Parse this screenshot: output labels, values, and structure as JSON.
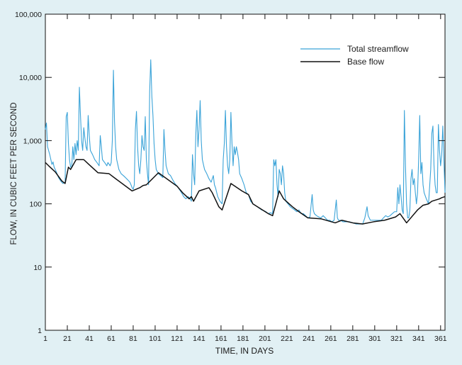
{
  "chart_data": {
    "type": "line",
    "title": "",
    "xlabel": "TIME, IN DAYS",
    "ylabel": "FLOW, IN CUBIC FEET PER SECOND",
    "x_scale": "linear",
    "y_scale": "log",
    "xlim": [
      1,
      365
    ],
    "ylim": [
      1,
      100000
    ],
    "x_ticks": [
      1,
      21,
      41,
      61,
      81,
      101,
      121,
      141,
      161,
      181,
      201,
      221,
      241,
      261,
      281,
      301,
      321,
      341,
      361
    ],
    "y_ticks": [
      {
        "value": 1,
        "label": "1"
      },
      {
        "value": 10,
        "label": "10"
      },
      {
        "value": 100,
        "label": "100"
      },
      {
        "value": 1000,
        "label": "1,000"
      },
      {
        "value": 10000,
        "label": "10,000"
      },
      {
        "value": 100000,
        "label": "100,000"
      }
    ],
    "grid": false,
    "legend_position": "top-right",
    "colors": {
      "background": "#e1f0f4",
      "plot_background": "#ffffff",
      "total_streamflow": "#3aa3d8",
      "base_flow": "#111111"
    },
    "series": [
      {
        "name": "Total streamflow",
        "color": "#3aa3d8",
        "points": [
          [
            1,
            1500
          ],
          [
            2,
            1900
          ],
          [
            3,
            800
          ],
          [
            5,
            600
          ],
          [
            7,
            420
          ],
          [
            8,
            460
          ],
          [
            9,
            380
          ],
          [
            11,
            320
          ],
          [
            13,
            260
          ],
          [
            15,
            230
          ],
          [
            17,
            210
          ],
          [
            19,
            220
          ],
          [
            20,
            2400
          ],
          [
            21,
            2800
          ],
          [
            22,
            900
          ],
          [
            23,
            500
          ],
          [
            24,
            380
          ],
          [
            25,
            380
          ],
          [
            26,
            800
          ],
          [
            27,
            500
          ],
          [
            28,
            900
          ],
          [
            29,
            600
          ],
          [
            30,
            1000
          ],
          [
            31,
            700
          ],
          [
            32,
            7000
          ],
          [
            33,
            2500
          ],
          [
            34,
            1000
          ],
          [
            35,
            700
          ],
          [
            36,
            1600
          ],
          [
            37,
            1100
          ],
          [
            38,
            800
          ],
          [
            39,
            700
          ],
          [
            40,
            2500
          ],
          [
            41,
            1200
          ],
          [
            42,
            700
          ],
          [
            44,
            600
          ],
          [
            46,
            500
          ],
          [
            48,
            450
          ],
          [
            50,
            400
          ],
          [
            51,
            1200
          ],
          [
            52,
            800
          ],
          [
            53,
            500
          ],
          [
            55,
            450
          ],
          [
            57,
            400
          ],
          [
            58,
            450
          ],
          [
            60,
            400
          ],
          [
            61,
            450
          ],
          [
            62,
            1000
          ],
          [
            63,
            13000
          ],
          [
            64,
            2000
          ],
          [
            65,
            800
          ],
          [
            66,
            500
          ],
          [
            68,
            350
          ],
          [
            70,
            300
          ],
          [
            72,
            280
          ],
          [
            74,
            260
          ],
          [
            76,
            240
          ],
          [
            78,
            220
          ],
          [
            79,
            200
          ],
          [
            80,
            180
          ],
          [
            81,
            170
          ],
          [
            82,
            200
          ],
          [
            83,
            1500
          ],
          [
            84,
            2900
          ],
          [
            85,
            800
          ],
          [
            86,
            400
          ],
          [
            87,
            300
          ],
          [
            88,
            500
          ],
          [
            89,
            1200
          ],
          [
            90,
            800
          ],
          [
            91,
            700
          ],
          [
            92,
            2400
          ],
          [
            93,
            500
          ],
          [
            94,
            300
          ],
          [
            95,
            200
          ],
          [
            96,
            6000
          ],
          [
            97,
            19000
          ],
          [
            98,
            5000
          ],
          [
            99,
            2500
          ],
          [
            100,
            900
          ],
          [
            101,
            500
          ],
          [
            102,
            350
          ],
          [
            104,
            300
          ],
          [
            106,
            280
          ],
          [
            108,
            260
          ],
          [
            109,
            1500
          ],
          [
            110,
            700
          ],
          [
            111,
            400
          ],
          [
            113,
            300
          ],
          [
            115,
            280
          ],
          [
            117,
            240
          ],
          [
            119,
            210
          ],
          [
            121,
            190
          ],
          [
            123,
            170
          ],
          [
            125,
            150
          ],
          [
            127,
            130
          ],
          [
            129,
            120
          ],
          [
            131,
            130
          ],
          [
            133,
            120
          ],
          [
            134,
            110
          ],
          [
            135,
            600
          ],
          [
            136,
            300
          ],
          [
            137,
            200
          ],
          [
            138,
            1200
          ],
          [
            139,
            3000
          ],
          [
            140,
            800
          ],
          [
            141,
            1500
          ],
          [
            142,
            4300
          ],
          [
            143,
            1000
          ],
          [
            144,
            500
          ],
          [
            146,
            350
          ],
          [
            148,
            300
          ],
          [
            150,
            250
          ],
          [
            152,
            220
          ],
          [
            154,
            280
          ],
          [
            155,
            200
          ],
          [
            156,
            180
          ],
          [
            158,
            130
          ],
          [
            160,
            110
          ],
          [
            162,
            100
          ],
          [
            163,
            500
          ],
          [
            164,
            900
          ],
          [
            165,
            3000
          ],
          [
            166,
            800
          ],
          [
            167,
            400
          ],
          [
            168,
            300
          ],
          [
            169,
            500
          ],
          [
            170,
            2800
          ],
          [
            171,
            900
          ],
          [
            172,
            400
          ],
          [
            173,
            800
          ],
          [
            174,
            600
          ],
          [
            175,
            800
          ],
          [
            176,
            650
          ],
          [
            177,
            500
          ],
          [
            178,
            300
          ],
          [
            180,
            250
          ],
          [
            182,
            200
          ],
          [
            184,
            150
          ],
          [
            186,
            140
          ],
          [
            188,
            110
          ],
          [
            190,
            100
          ],
          [
            192,
            95
          ],
          [
            194,
            90
          ],
          [
            196,
            85
          ],
          [
            198,
            80
          ],
          [
            200,
            78
          ],
          [
            202,
            75
          ],
          [
            204,
            70
          ],
          [
            206,
            72
          ],
          [
            208,
            70
          ],
          [
            209,
            500
          ],
          [
            210,
            400
          ],
          [
            211,
            500
          ],
          [
            212,
            200
          ],
          [
            213,
            130
          ],
          [
            214,
            350
          ],
          [
            215,
            300
          ],
          [
            216,
            200
          ],
          [
            217,
            400
          ],
          [
            218,
            300
          ],
          [
            219,
            150
          ],
          [
            220,
            110
          ],
          [
            222,
            100
          ],
          [
            224,
            90
          ],
          [
            226,
            85
          ],
          [
            228,
            80
          ],
          [
            230,
            75
          ],
          [
            232,
            80
          ],
          [
            234,
            70
          ],
          [
            236,
            70
          ],
          [
            238,
            65
          ],
          [
            240,
            60
          ],
          [
            242,
            62
          ],
          [
            244,
            140
          ],
          [
            245,
            80
          ],
          [
            246,
            70
          ],
          [
            248,
            65
          ],
          [
            250,
            62
          ],
          [
            252,
            60
          ],
          [
            254,
            65
          ],
          [
            256,
            60
          ],
          [
            258,
            55
          ],
          [
            260,
            55
          ],
          [
            262,
            52
          ],
          [
            264,
            55
          ],
          [
            266,
            115
          ],
          [
            267,
            60
          ],
          [
            268,
            55
          ],
          [
            270,
            55
          ],
          [
            272,
            52
          ],
          [
            275,
            52
          ],
          [
            278,
            52
          ],
          [
            281,
            50
          ],
          [
            284,
            48
          ],
          [
            287,
            48
          ],
          [
            290,
            48
          ],
          [
            292,
            60
          ],
          [
            294,
            90
          ],
          [
            295,
            65
          ],
          [
            297,
            55
          ],
          [
            299,
            55
          ],
          [
            301,
            55
          ],
          [
            303,
            55
          ],
          [
            305,
            55
          ],
          [
            307,
            55
          ],
          [
            309,
            60
          ],
          [
            311,
            65
          ],
          [
            313,
            62
          ],
          [
            315,
            65
          ],
          [
            317,
            70
          ],
          [
            319,
            75
          ],
          [
            321,
            75
          ],
          [
            322,
            180
          ],
          [
            323,
            100
          ],
          [
            324,
            200
          ],
          [
            325,
            130
          ],
          [
            326,
            80
          ],
          [
            327,
            70
          ],
          [
            328,
            3000
          ],
          [
            329,
            400
          ],
          [
            330,
            100
          ],
          [
            331,
            60
          ],
          [
            332,
            60
          ],
          [
            333,
            80
          ],
          [
            334,
            250
          ],
          [
            335,
            350
          ],
          [
            336,
            200
          ],
          [
            337,
            250
          ],
          [
            338,
            150
          ],
          [
            339,
            100
          ],
          [
            340,
            150
          ],
          [
            341,
            500
          ],
          [
            342,
            2500
          ],
          [
            343,
            300
          ],
          [
            344,
            450
          ],
          [
            345,
            200
          ],
          [
            346,
            150
          ],
          [
            348,
            120
          ],
          [
            350,
            100
          ],
          [
            352,
            350
          ],
          [
            353,
            1300
          ],
          [
            354,
            1700
          ],
          [
            355,
            400
          ],
          [
            356,
            200
          ],
          [
            357,
            150
          ],
          [
            358,
            150
          ],
          [
            359,
            1800
          ],
          [
            360,
            700
          ],
          [
            361,
            400
          ],
          [
            362,
            600
          ],
          [
            363,
            1700
          ],
          [
            364,
            500
          ],
          [
            365,
            150
          ]
        ]
      },
      {
        "name": "Base flow",
        "color": "#111111",
        "points": [
          [
            1,
            450
          ],
          [
            4,
            400
          ],
          [
            10,
            320
          ],
          [
            16,
            230
          ],
          [
            19,
            210
          ],
          [
            22,
            380
          ],
          [
            24,
            350
          ],
          [
            29,
            500
          ],
          [
            36,
            500
          ],
          [
            40,
            430
          ],
          [
            49,
            310
          ],
          [
            59,
            300
          ],
          [
            65,
            250
          ],
          [
            80,
            160
          ],
          [
            87,
            180
          ],
          [
            90,
            195
          ],
          [
            93,
            200
          ],
          [
            104,
            310
          ],
          [
            121,
            190
          ],
          [
            126,
            150
          ],
          [
            132,
            120
          ],
          [
            134,
            130
          ],
          [
            136,
            110
          ],
          [
            141,
            160
          ],
          [
            150,
            180
          ],
          [
            153,
            150
          ],
          [
            159,
            90
          ],
          [
            162,
            80
          ],
          [
            170,
            210
          ],
          [
            180,
            160
          ],
          [
            186,
            140
          ],
          [
            190,
            100
          ],
          [
            204,
            70
          ],
          [
            208,
            65
          ],
          [
            214,
            160
          ],
          [
            218,
            120
          ],
          [
            226,
            90
          ],
          [
            232,
            75
          ],
          [
            240,
            60
          ],
          [
            252,
            58
          ],
          [
            265,
            50
          ],
          [
            271,
            55
          ],
          [
            281,
            50
          ],
          [
            290,
            48
          ],
          [
            300,
            52
          ],
          [
            310,
            55
          ],
          [
            320,
            62
          ],
          [
            324,
            70
          ],
          [
            330,
            50
          ],
          [
            340,
            80
          ],
          [
            345,
            95
          ],
          [
            350,
            100
          ],
          [
            353,
            110
          ],
          [
            360,
            120
          ],
          [
            362,
            125
          ],
          [
            365,
            130
          ]
        ]
      }
    ],
    "legend": [
      {
        "label": "Total streamflow",
        "color": "#3aa3d8"
      },
      {
        "label": "Base flow",
        "color": "#111111"
      }
    ]
  }
}
